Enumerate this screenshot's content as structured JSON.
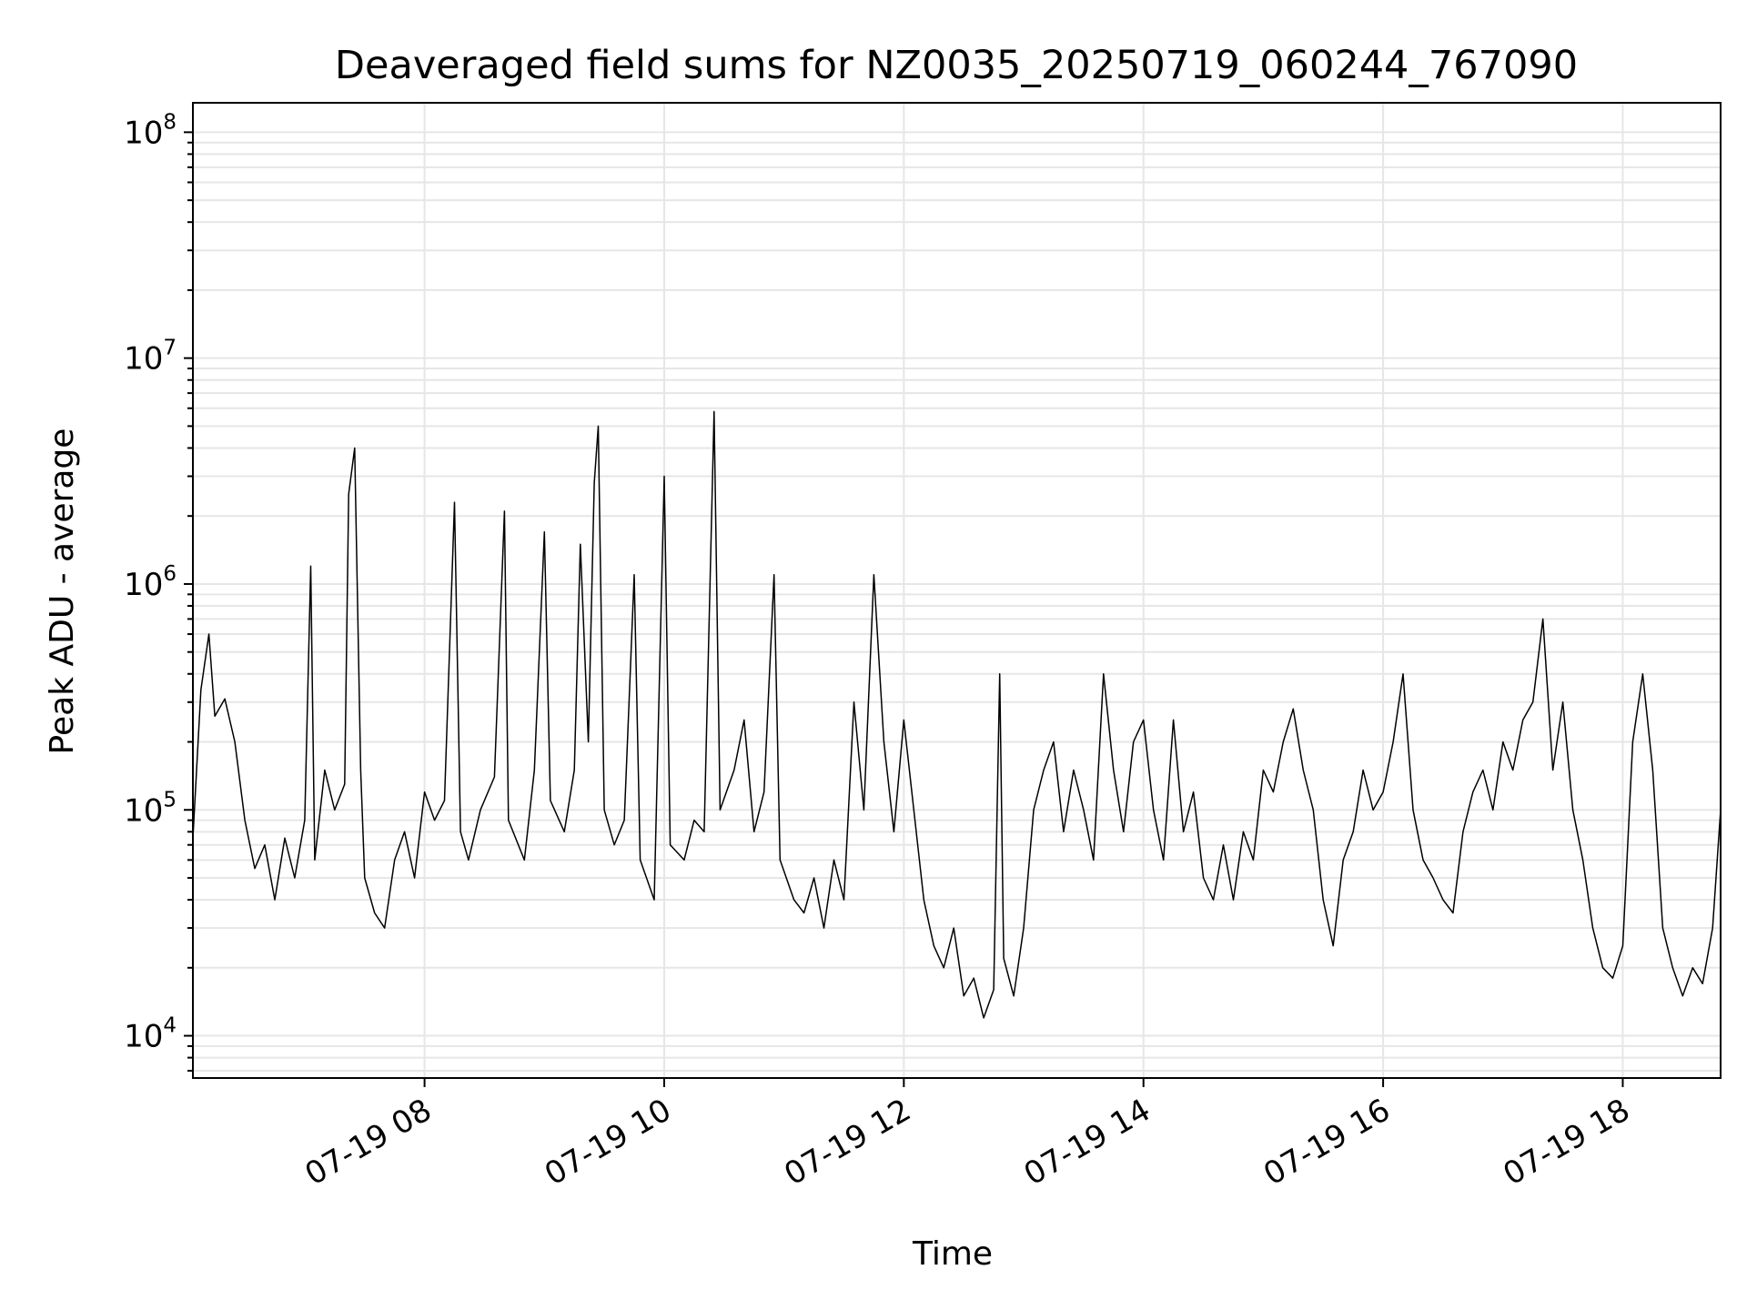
{
  "chart_data": {
    "type": "line",
    "title": "Deaveraged field sums for NZ0035_20250719_060244_767090",
    "xlabel": "Time",
    "ylabel": "Peak ADU - average",
    "x_range": [
      "2025-07-19 06:04",
      "2025-07-19 18:49"
    ],
    "xticks": [
      {
        "time": "2025-07-19 08:00",
        "label": "07-19 08"
      },
      {
        "time": "2025-07-19 10:00",
        "label": "07-19 10"
      },
      {
        "time": "2025-07-19 12:00",
        "label": "07-19 12"
      },
      {
        "time": "2025-07-19 14:00",
        "label": "07-19 14"
      },
      {
        "time": "2025-07-19 16:00",
        "label": "07-19 16"
      },
      {
        "time": "2025-07-19 18:00",
        "label": "07-19 18"
      }
    ],
    "y_scale": "log",
    "ylim": [
      6500,
      135000000
    ],
    "yticks": [
      {
        "value": 10000,
        "base": "10",
        "exp": "4"
      },
      {
        "value": 100000,
        "base": "10",
        "exp": "5"
      },
      {
        "value": 1000000,
        "base": "10",
        "exp": "6"
      },
      {
        "value": 10000000,
        "base": "10",
        "exp": "7"
      },
      {
        "value": 100000000,
        "base": "10",
        "exp": "8"
      }
    ],
    "grid": true,
    "line_color": "#000000",
    "grid_color": "#e6e6e6",
    "series": [
      {
        "points": [
          [
            "06:04",
            75000
          ],
          [
            "06:08",
            340000
          ],
          [
            "06:12",
            600000
          ],
          [
            "06:15",
            260000
          ],
          [
            "06:20",
            310000
          ],
          [
            "06:25",
            200000
          ],
          [
            "06:30",
            90000
          ],
          [
            "06:35",
            55000
          ],
          [
            "06:40",
            70000
          ],
          [
            "06:45",
            40000
          ],
          [
            "06:50",
            75000
          ],
          [
            "06:55",
            50000
          ],
          [
            "07:00",
            90000
          ],
          [
            "07:03",
            1200000
          ],
          [
            "07:05",
            60000
          ],
          [
            "07:10",
            150000
          ],
          [
            "07:15",
            100000
          ],
          [
            "07:20",
            130000
          ],
          [
            "07:22",
            2500000
          ],
          [
            "07:25",
            4000000
          ],
          [
            "07:28",
            150000
          ],
          [
            "07:30",
            50000
          ],
          [
            "07:35",
            35000
          ],
          [
            "07:40",
            30000
          ],
          [
            "07:45",
            60000
          ],
          [
            "07:50",
            80000
          ],
          [
            "07:55",
            50000
          ],
          [
            "08:00",
            120000
          ],
          [
            "08:05",
            90000
          ],
          [
            "08:10",
            110000
          ],
          [
            "08:15",
            2300000
          ],
          [
            "08:18",
            80000
          ],
          [
            "08:22",
            60000
          ],
          [
            "08:28",
            100000
          ],
          [
            "08:35",
            140000
          ],
          [
            "08:40",
            2100000
          ],
          [
            "08:42",
            90000
          ],
          [
            "08:50",
            60000
          ],
          [
            "08:55",
            150000
          ],
          [
            "09:00",
            1700000
          ],
          [
            "09:03",
            110000
          ],
          [
            "09:10",
            80000
          ],
          [
            "09:15",
            150000
          ],
          [
            "09:18",
            1500000
          ],
          [
            "09:22",
            200000
          ],
          [
            "09:25",
            2800000
          ],
          [
            "09:27",
            5000000
          ],
          [
            "09:30",
            100000
          ],
          [
            "09:35",
            70000
          ],
          [
            "09:40",
            90000
          ],
          [
            "09:45",
            1100000
          ],
          [
            "09:48",
            60000
          ],
          [
            "09:55",
            40000
          ],
          [
            "10:00",
            3000000
          ],
          [
            "10:03",
            70000
          ],
          [
            "10:10",
            60000
          ],
          [
            "10:15",
            90000
          ],
          [
            "10:20",
            80000
          ],
          [
            "10:25",
            5800000
          ],
          [
            "10:28",
            100000
          ],
          [
            "10:35",
            150000
          ],
          [
            "10:40",
            250000
          ],
          [
            "10:45",
            80000
          ],
          [
            "10:50",
            120000
          ],
          [
            "10:55",
            1100000
          ],
          [
            "10:58",
            60000
          ],
          [
            "11:05",
            40000
          ],
          [
            "11:10",
            35000
          ],
          [
            "11:15",
            50000
          ],
          [
            "11:20",
            30000
          ],
          [
            "11:25",
            60000
          ],
          [
            "11:30",
            40000
          ],
          [
            "11:35",
            300000
          ],
          [
            "11:40",
            100000
          ],
          [
            "11:45",
            1100000
          ],
          [
            "11:50",
            200000
          ],
          [
            "11:55",
            80000
          ],
          [
            "12:00",
            250000
          ],
          [
            "12:05",
            100000
          ],
          [
            "12:10",
            40000
          ],
          [
            "12:15",
            25000
          ],
          [
            "12:20",
            20000
          ],
          [
            "12:25",
            30000
          ],
          [
            "12:30",
            15000
          ],
          [
            "12:35",
            18000
          ],
          [
            "12:40",
            12000
          ],
          [
            "12:45",
            16000
          ],
          [
            "12:48",
            400000
          ],
          [
            "12:50",
            22000
          ],
          [
            "12:55",
            15000
          ],
          [
            "13:00",
            30000
          ],
          [
            "13:05",
            100000
          ],
          [
            "13:10",
            150000
          ],
          [
            "13:15",
            200000
          ],
          [
            "13:20",
            80000
          ],
          [
            "13:25",
            150000
          ],
          [
            "13:30",
            100000
          ],
          [
            "13:35",
            60000
          ],
          [
            "13:40",
            400000
          ],
          [
            "13:45",
            150000
          ],
          [
            "13:50",
            80000
          ],
          [
            "13:55",
            200000
          ],
          [
            "14:00",
            250000
          ],
          [
            "14:05",
            100000
          ],
          [
            "14:10",
            60000
          ],
          [
            "14:15",
            250000
          ],
          [
            "14:20",
            80000
          ],
          [
            "14:25",
            120000
          ],
          [
            "14:30",
            50000
          ],
          [
            "14:35",
            40000
          ],
          [
            "14:40",
            70000
          ],
          [
            "14:45",
            40000
          ],
          [
            "14:50",
            80000
          ],
          [
            "14:55",
            60000
          ],
          [
            "15:00",
            150000
          ],
          [
            "15:05",
            120000
          ],
          [
            "15:10",
            200000
          ],
          [
            "15:15",
            280000
          ],
          [
            "15:20",
            150000
          ],
          [
            "15:25",
            100000
          ],
          [
            "15:30",
            40000
          ],
          [
            "15:35",
            25000
          ],
          [
            "15:40",
            60000
          ],
          [
            "15:45",
            80000
          ],
          [
            "15:50",
            150000
          ],
          [
            "15:55",
            100000
          ],
          [
            "16:00",
            120000
          ],
          [
            "16:05",
            200000
          ],
          [
            "16:10",
            400000
          ],
          [
            "16:15",
            100000
          ],
          [
            "16:20",
            60000
          ],
          [
            "16:25",
            50000
          ],
          [
            "16:30",
            40000
          ],
          [
            "16:35",
            35000
          ],
          [
            "16:40",
            80000
          ],
          [
            "16:45",
            120000
          ],
          [
            "16:50",
            150000
          ],
          [
            "16:55",
            100000
          ],
          [
            "17:00",
            200000
          ],
          [
            "17:05",
            150000
          ],
          [
            "17:10",
            250000
          ],
          [
            "17:15",
            300000
          ],
          [
            "17:20",
            700000
          ],
          [
            "17:25",
            150000
          ],
          [
            "17:30",
            300000
          ],
          [
            "17:35",
            100000
          ],
          [
            "17:40",
            60000
          ],
          [
            "17:45",
            30000
          ],
          [
            "17:50",
            20000
          ],
          [
            "17:55",
            18000
          ],
          [
            "18:00",
            25000
          ],
          [
            "18:05",
            200000
          ],
          [
            "18:10",
            400000
          ],
          [
            "18:15",
            150000
          ],
          [
            "18:20",
            30000
          ],
          [
            "18:25",
            20000
          ],
          [
            "18:30",
            15000
          ],
          [
            "18:35",
            20000
          ],
          [
            "18:40",
            17000
          ],
          [
            "18:45",
            30000
          ],
          [
            "18:49",
            100000
          ]
        ]
      }
    ]
  }
}
